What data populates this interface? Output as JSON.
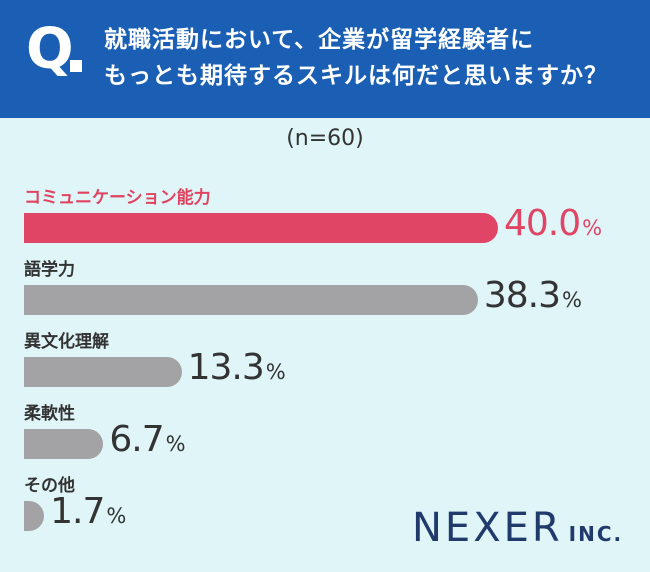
{
  "header": {
    "q_mark": "Q",
    "question_line1": "就職活動において、企業が留学経験者に",
    "question_line2": "もっとも期待するスキルは何だと思いますか？"
  },
  "sample_size": "(n=60)",
  "chart_data": {
    "type": "bar",
    "orientation": "horizontal",
    "categories": [
      "コミュニケーション能力",
      "語学力",
      "異文化理解",
      "柔軟性",
      "その他"
    ],
    "values": [
      40.0,
      38.3,
      13.3,
      6.7,
      1.7
    ],
    "value_labels": [
      "40.0",
      "38.3",
      "13.3",
      "6.7",
      "1.7"
    ],
    "unit": "%",
    "xlim": [
      0,
      40.0
    ],
    "highlight_index": 0,
    "colors": {
      "highlight": "#e04565",
      "default": "#a3a3a5",
      "highlight_text": "#e0435f"
    }
  },
  "brand": {
    "main": "NEXER",
    "sub": "INC."
  }
}
